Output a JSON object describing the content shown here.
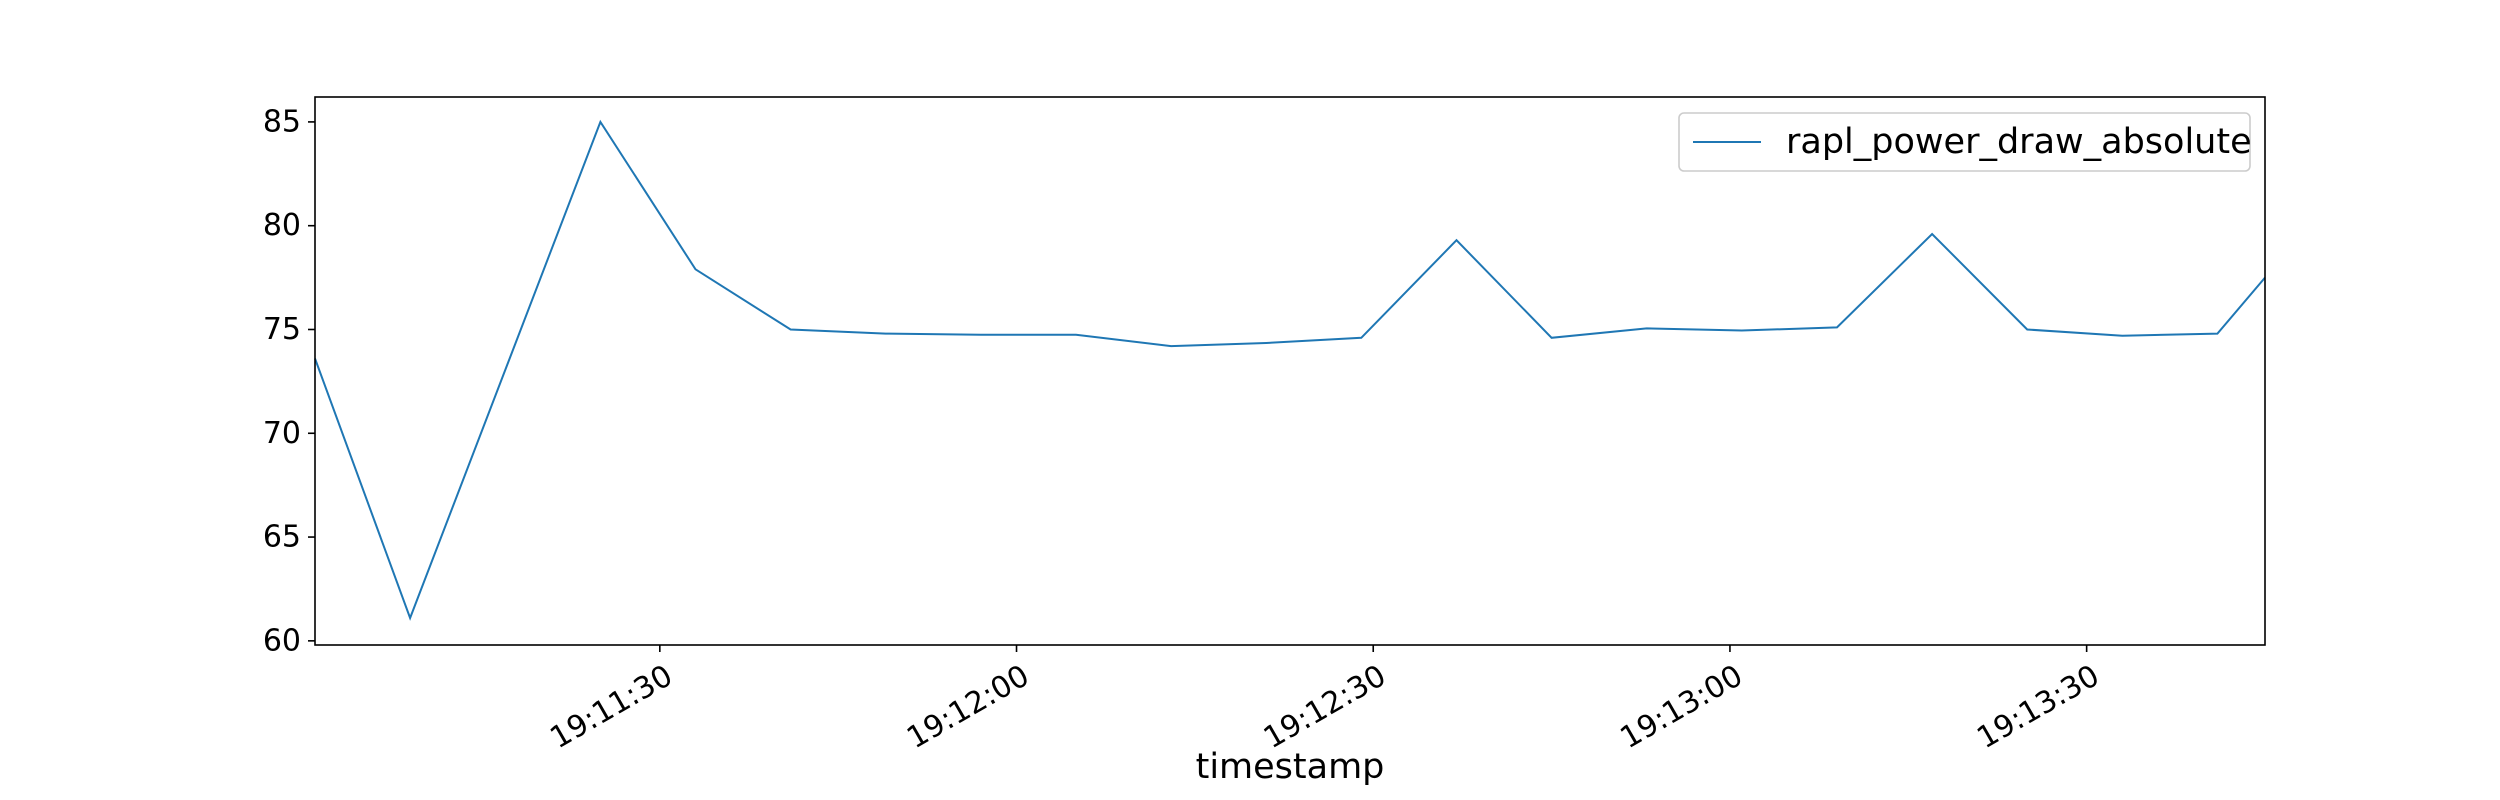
{
  "chart_data": {
    "type": "line",
    "title": "",
    "xlabel": "timestamp",
    "ylabel": "",
    "x_tick_labels": [
      "19:11:30",
      "19:12:00",
      "19:12:30",
      "19:13:00",
      "19:13:30"
    ],
    "y_tick_labels": [
      "60",
      "65",
      "70",
      "75",
      "80",
      "85"
    ],
    "xlim": [
      "19:11:01",
      "19:13:45"
    ],
    "ylim": [
      59.8,
      86.2
    ],
    "grid": false,
    "legend": {
      "position": "top-right",
      "entries": [
        "rapl_power_draw_absolute"
      ]
    },
    "series": [
      {
        "name": "rapl_power_draw_absolute",
        "color": "#1f77b4",
        "x": [
          "19:11:01",
          "19:11:09",
          "19:11:25",
          "19:11:33",
          "19:11:41",
          "19:11:49",
          "19:11:57",
          "19:12:05",
          "19:12:13",
          "19:12:21",
          "19:12:29",
          "19:12:37",
          "19:12:45",
          "19:12:53",
          "19:13:01",
          "19:13:09",
          "19:13:17",
          "19:13:25",
          "19:13:33",
          "19:13:41",
          "19:13:45"
        ],
        "y": [
          73.6,
          61.1,
          85.0,
          77.9,
          75.0,
          74.8,
          74.75,
          74.75,
          74.2,
          74.35,
          74.6,
          79.3,
          74.6,
          75.05,
          74.95,
          75.1,
          79.6,
          75.0,
          74.7,
          74.8,
          77.5
        ]
      }
    ]
  }
}
